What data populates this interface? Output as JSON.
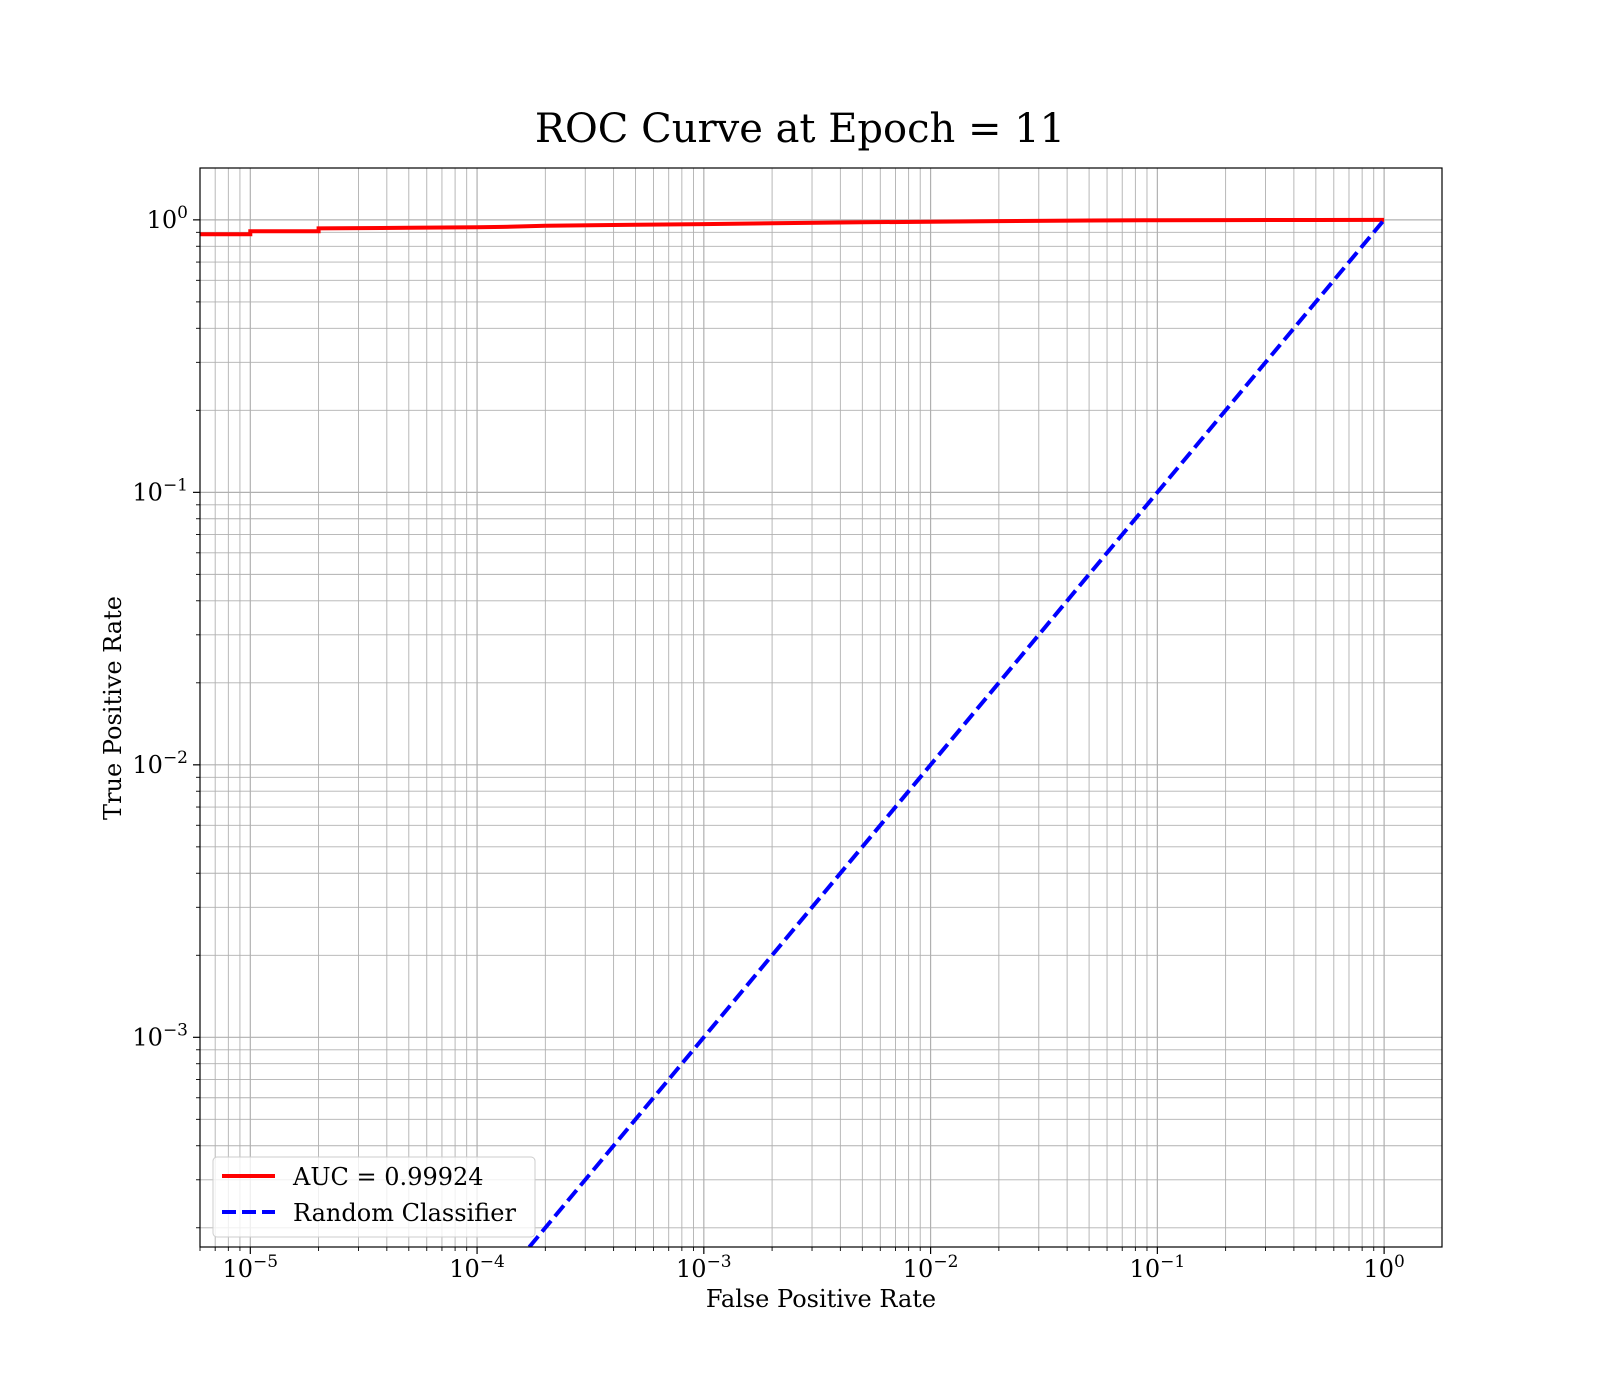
{
  "chart_data": {
    "type": "line",
    "title": "ROC Curve at Epoch = 11",
    "xlabel": "False Positive Rate",
    "ylabel": "True Positive Rate",
    "xscale": "log",
    "yscale": "log",
    "xlim": [
      6e-06,
      1.8
    ],
    "ylim": [
      0.00017,
      1.55
    ],
    "grid": true,
    "grid_minor": true,
    "legend_position": "lower left",
    "x_ticks": [
      {
        "value": 1e-05,
        "base": "10",
        "exp": "−5"
      },
      {
        "value": 0.0001,
        "base": "10",
        "exp": "−4"
      },
      {
        "value": 0.001,
        "base": "10",
        "exp": "−3"
      },
      {
        "value": 0.01,
        "base": "10",
        "exp": "−2"
      },
      {
        "value": 0.1,
        "base": "10",
        "exp": "−1"
      },
      {
        "value": 1,
        "base": "10",
        "exp": "0"
      }
    ],
    "y_ticks": [
      {
        "value": 0.001,
        "base": "10",
        "exp": "−3"
      },
      {
        "value": 0.01,
        "base": "10",
        "exp": "−2"
      },
      {
        "value": 0.1,
        "base": "10",
        "exp": "−1"
      },
      {
        "value": 1,
        "base": "10",
        "exp": "0"
      }
    ],
    "series": [
      {
        "name": "AUC = 0.99924",
        "color": "#ff0000",
        "style": "solid",
        "x": [
          6e-06,
          1e-05,
          1e-05,
          2e-05,
          2e-05,
          5e-05,
          0.0001,
          0.00013,
          0.0002,
          0.0005,
          0.001,
          0.002,
          0.005,
          0.01,
          0.02,
          0.05,
          0.1,
          0.2,
          0.5,
          1
        ],
        "y": [
          0.885,
          0.885,
          0.908,
          0.908,
          0.93,
          0.935,
          0.94,
          0.942,
          0.952,
          0.96,
          0.965,
          0.972,
          0.98,
          0.985,
          0.99,
          0.995,
          0.997,
          0.998,
          0.999,
          1.0
        ]
      },
      {
        "name": "Random Classifier",
        "color": "#0000ff",
        "style": "dashed",
        "x": [
          0.00017,
          1
        ],
        "y": [
          0.00017,
          1
        ]
      }
    ]
  }
}
